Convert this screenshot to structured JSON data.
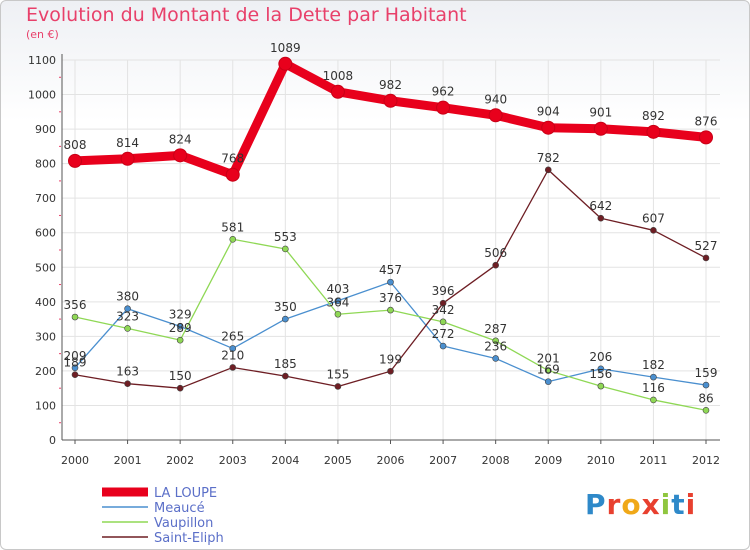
{
  "chart_data": {
    "type": "line",
    "title": "Evolution du Montant de la Dette par Habitant",
    "subtitle": "(en €)",
    "x": [
      "2000",
      "2001",
      "2002",
      "2003",
      "2004",
      "2005",
      "2006",
      "2007",
      "2008",
      "2009",
      "2010",
      "2011",
      "2012"
    ],
    "ylim": [
      0,
      1100
    ],
    "yticks": [
      0,
      100,
      200,
      300,
      400,
      500,
      600,
      700,
      800,
      900,
      1000,
      1100
    ],
    "grid": true,
    "legend_position": "bottom-left",
    "series": [
      {
        "name": "LA LOUPE",
        "color": "#e8001c",
        "values": [
          808,
          814,
          824,
          768,
          1089,
          1008,
          982,
          962,
          940,
          904,
          901,
          892,
          876
        ],
        "labels": [
          "808",
          "814",
          "824",
          "768",
          "1089",
          "1008",
          "982",
          "962",
          "940",
          "904",
          "901",
          "892",
          "876"
        ]
      },
      {
        "name": "Meaucé",
        "color": "#4a8fcf",
        "values": [
          209,
          380,
          329,
          265,
          350,
          403,
          457,
          272,
          236,
          169,
          206,
          182,
          159
        ],
        "labels": [
          "209",
          "380",
          "329",
          "265",
          "350",
          "403",
          "457",
          "272",
          "236",
          "169",
          "206",
          "182",
          "159"
        ]
      },
      {
        "name": "Vaupillon",
        "color": "#8fd855",
        "values": [
          356,
          323,
          289,
          581,
          553,
          364,
          376,
          342,
          287,
          201,
          156,
          116,
          86
        ],
        "labels": [
          "356",
          "323",
          "289",
          "581",
          "553",
          "364",
          "376",
          "342",
          "287",
          "201",
          "156",
          "116",
          "86"
        ]
      },
      {
        "name": "Saint-Eliph",
        "color": "#6e1e24",
        "values": [
          189,
          163,
          150,
          210,
          185,
          155,
          199,
          396,
          506,
          782,
          642,
          607,
          527
        ],
        "labels": [
          "189",
          "163",
          "150",
          "210",
          "185",
          "155",
          "199",
          "396",
          "506",
          "782",
          "642",
          "607",
          "527"
        ]
      }
    ]
  },
  "brand": {
    "letters": [
      "P",
      "r",
      "o",
      "x",
      "i",
      "t",
      "i"
    ],
    "colors": [
      "#2e89c9",
      "#e8402f",
      "#f0a818",
      "#e8402f",
      "#8fc63f",
      "#2e89c9",
      "#e8402f"
    ]
  }
}
